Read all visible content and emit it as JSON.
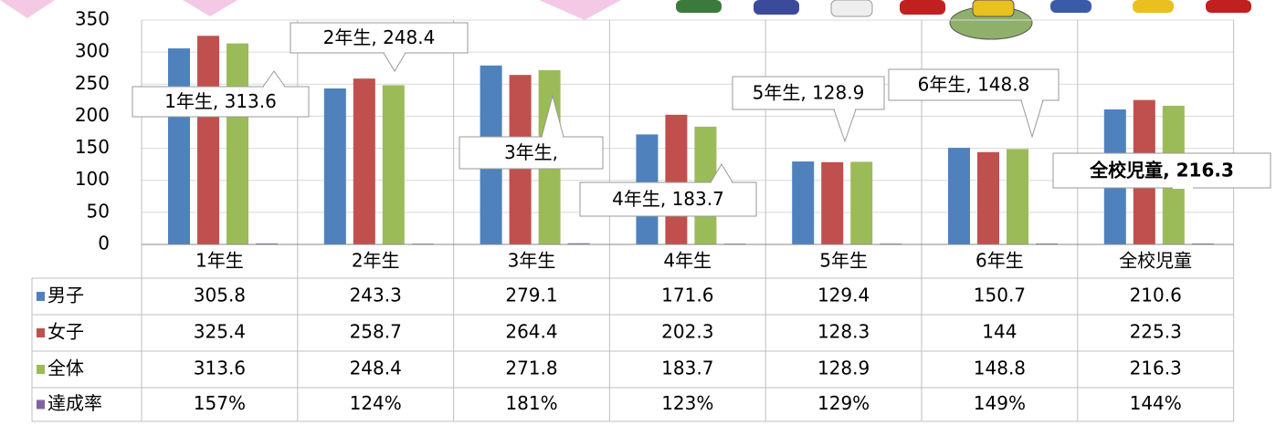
{
  "chart_data": {
    "type": "bar",
    "categories": [
      "1年生",
      "2年生",
      "3年生",
      "4年生",
      "5年生",
      "6年生",
      "全校児童"
    ],
    "series": [
      {
        "name": "男子",
        "color": "#4f81bd",
        "values": [
          305.8,
          243.3,
          279.1,
          171.6,
          129.4,
          150.7,
          210.6
        ]
      },
      {
        "name": "女子",
        "color": "#c0504d",
        "values": [
          325.4,
          258.7,
          264.4,
          202.3,
          128.3,
          144,
          225.3
        ]
      },
      {
        "name": "全体",
        "color": "#9bbb59",
        "values": [
          313.6,
          248.4,
          271.8,
          183.7,
          128.9,
          148.8,
          216.3
        ]
      },
      {
        "name": "達成率",
        "color": "#8064a2",
        "values": [
          1.57,
          1.24,
          1.81,
          1.23,
          1.29,
          1.49,
          1.44
        ],
        "value_labels": [
          "157%",
          "124%",
          "181%",
          "123%",
          "129%",
          "149%",
          "144%"
        ]
      }
    ],
    "callouts": [
      "1年生, 313.6",
      "2年生, 248.4",
      "3年生,",
      "4年生, 183.7",
      "5年生, 128.9",
      "6年生, 148.8",
      "全校児童, 216.3"
    ],
    "ylim": [
      0,
      350
    ],
    "yticks": [
      0,
      50,
      100,
      150,
      200,
      250,
      300,
      350
    ],
    "grid": true
  }
}
